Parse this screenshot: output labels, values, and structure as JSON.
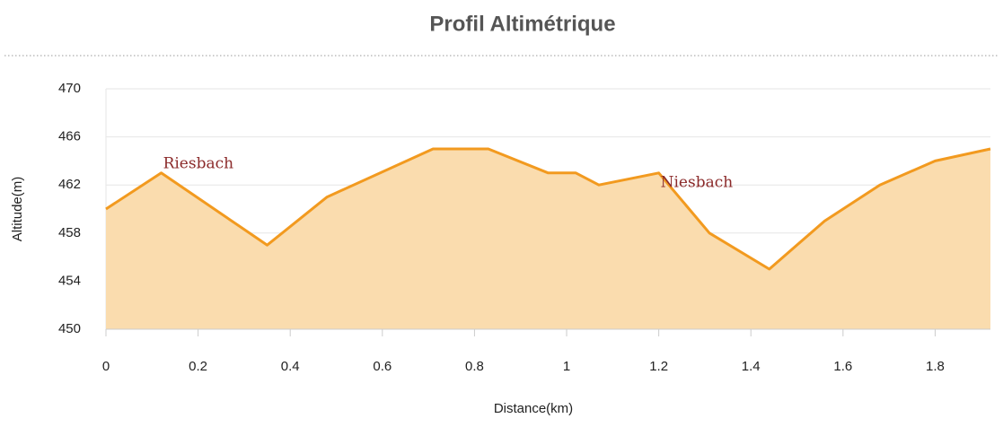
{
  "chart_data": {
    "type": "area",
    "title": "Profil Altimétrique",
    "x_label": "Distance(km)",
    "y_label": "Altitude(m)",
    "x": [
      0,
      0.12,
      0.35,
      0.48,
      0.71,
      0.83,
      0.96,
      1.02,
      1.07,
      1.2,
      1.31,
      1.44,
      1.56,
      1.68,
      1.8,
      1.92
    ],
    "series": [
      {
        "name": "Altitude",
        "color": "#f29a1f",
        "fill": "#fadcae",
        "values": [
          460,
          463,
          457,
          461,
          465,
          465,
          463,
          463,
          462,
          463,
          458,
          455,
          459,
          462,
          464,
          465
        ]
      }
    ],
    "xlim": [
      0,
      1.92
    ],
    "xticks": [
      0,
      0.2,
      0.4,
      0.6,
      0.8,
      1,
      1.2,
      1.4,
      1.6,
      1.8
    ],
    "ylim": [
      450,
      470
    ],
    "yticks": [
      450,
      454,
      458,
      462,
      466,
      470
    ],
    "grid": true,
    "annotations": [
      {
        "text": "Riesbach",
        "x": 0.12,
        "y": 463
      },
      {
        "text": "Niesbach",
        "x": 1.2,
        "y": 463
      }
    ]
  }
}
